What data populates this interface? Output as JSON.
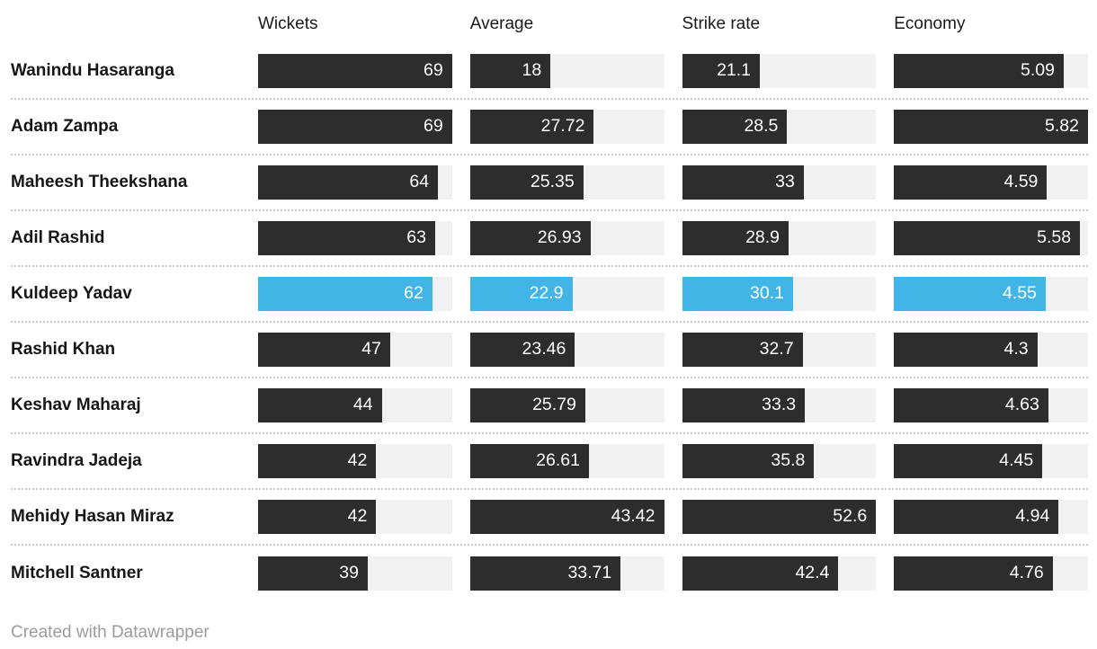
{
  "chart_data": {
    "type": "bar",
    "title": "",
    "legend_position": "none",
    "grid": false,
    "columns": [
      {
        "label": "Wickets",
        "max": 69
      },
      {
        "label": "Average",
        "max": 43.42
      },
      {
        "label": "Strike rate",
        "max": 52.6
      },
      {
        "label": "Economy",
        "max": 5.82
      }
    ],
    "rows": [
      {
        "name": "Wanindu Hasaranga",
        "values": [
          69,
          18,
          21.1,
          5.09
        ],
        "highlight": false
      },
      {
        "name": "Adam Zampa",
        "values": [
          69,
          27.72,
          28.5,
          5.82
        ],
        "highlight": false
      },
      {
        "name": "Maheesh Theekshana",
        "values": [
          64,
          25.35,
          33,
          4.59
        ],
        "highlight": false
      },
      {
        "name": "Adil Rashid",
        "values": [
          63,
          26.93,
          28.9,
          5.58
        ],
        "highlight": false
      },
      {
        "name": "Kuldeep Yadav",
        "values": [
          62,
          22.9,
          30.1,
          4.55
        ],
        "highlight": true
      },
      {
        "name": "Rashid Khan",
        "values": [
          47,
          23.46,
          32.7,
          4.3
        ],
        "highlight": false
      },
      {
        "name": "Keshav Maharaj",
        "values": [
          44,
          25.79,
          33.3,
          4.63
        ],
        "highlight": false
      },
      {
        "name": "Ravindra Jadeja",
        "values": [
          42,
          26.61,
          35.8,
          4.45
        ],
        "highlight": false
      },
      {
        "name": "Mehidy Hasan Miraz",
        "values": [
          42,
          43.42,
          52.6,
          4.94
        ],
        "highlight": false
      },
      {
        "name": "Mitchell Santner",
        "values": [
          39,
          33.71,
          42.4,
          4.76
        ],
        "highlight": false
      }
    ]
  },
  "colors": {
    "bar": "#2d2d2d",
    "highlight": "#41b6e6",
    "track": "#f1f1f1",
    "separator": "#cbcbcb",
    "header_text": "#1a1a1a",
    "name_text": "#161616",
    "value_text": "#ffffff",
    "credit_text": "#9b9b9b"
  },
  "footer": {
    "credit": "Created with Datawrapper"
  }
}
